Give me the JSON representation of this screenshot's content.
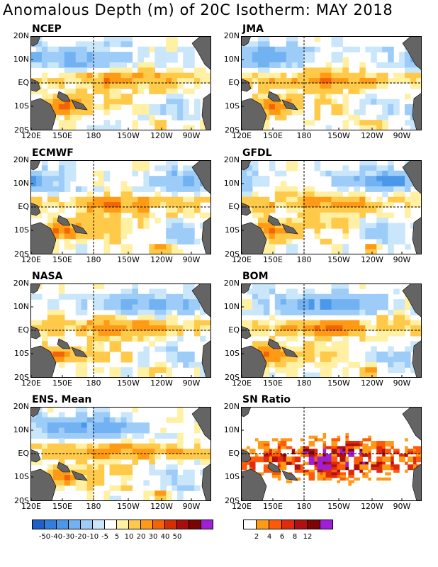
{
  "title": "Anomalous Depth (m) of 20C Isotherm: MAY 2018",
  "lat_labels": [
    "20N",
    "10N",
    "EQ",
    "10S",
    "20S"
  ],
  "lon_labels": [
    "120E",
    "150E",
    "180",
    "150W",
    "120W",
    "90W"
  ],
  "panels": [
    {
      "label": "NCEP",
      "kind": "anom"
    },
    {
      "label": "JMA",
      "kind": "anom"
    },
    {
      "label": "ECMWF",
      "kind": "anom"
    },
    {
      "label": "GFDL",
      "kind": "anom"
    },
    {
      "label": "NASA",
      "kind": "anom"
    },
    {
      "label": "BOM",
      "kind": "anom"
    },
    {
      "label": "ENS. Mean",
      "kind": "anom"
    },
    {
      "label": "SN Ratio",
      "kind": "snr"
    }
  ],
  "anomaly_colorbar": {
    "labels": [
      "-50",
      "-40",
      "-30",
      "-20",
      "-10",
      "-5",
      "5",
      "10",
      "20",
      "30",
      "40",
      "50"
    ],
    "colors": [
      "#1f5fc8",
      "#2f7fdd",
      "#4b98ea",
      "#72b2f2",
      "#9cccf7",
      "#c9e6fb",
      "#ffffff",
      "#fff0a3",
      "#ffc94a",
      "#ff9a14",
      "#f26406",
      "#d42e05",
      "#a80e0e",
      "#7a0504",
      "#a01ed6"
    ]
  },
  "snr_colorbar": {
    "labels": [
      "2",
      "4",
      "6",
      "8",
      "12"
    ],
    "colors": [
      "#ffffff",
      "#ff9a14",
      "#ff5a0a",
      "#e02c0c",
      "#b01010",
      "#7a0504",
      "#a01ed6"
    ]
  },
  "land_color": "#646464"
}
